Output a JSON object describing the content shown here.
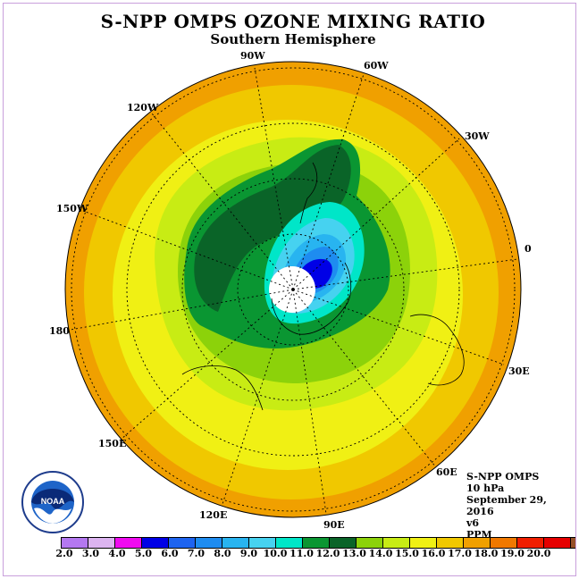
{
  "title": "S-NPP OMPS OZONE MIXING RATIO",
  "subtitle": "Southern Hemisphere",
  "longitude_labels": [
    "90W",
    "60W",
    "30W",
    "0",
    "30E",
    "60E",
    "90E",
    "120E",
    "150E",
    "180",
    "150W",
    "120W"
  ],
  "info": {
    "instrument": "S-NPP OMPS",
    "pressure": "10 hPa",
    "date": "September 29, 2016",
    "version": "v6",
    "units": "PPM"
  },
  "logo": {
    "text": "NOAA",
    "ring_text": "NATIONAL OCEANIC AND ATMOSPHERIC ADMINISTRATION · U.S. DEPARTMENT OF COMMERCE"
  },
  "colorbar": {
    "ticks": [
      "2.0",
      "3.0",
      "4.0",
      "5.0",
      "6.0",
      "7.0",
      "8.0",
      "9.0",
      "10.0",
      "11.0",
      "12.0",
      "13.0",
      "14.0",
      "15.0",
      "16.0",
      "17.0",
      "18.0",
      "19.0",
      "20.0"
    ],
    "colors": [
      "#b478f0",
      "#dcb4f0",
      "#f00af0",
      "#0000e6",
      "#1e64f0",
      "#1e8cf0",
      "#28b4f0",
      "#46d2f0",
      "#00e6c8",
      "#0a9632",
      "#0a6428",
      "#8cd20a",
      "#c8ec14",
      "#f0f014",
      "#f0c800",
      "#f0a000",
      "#f07800",
      "#f01e00",
      "#e60000",
      "#965028"
    ]
  }
}
